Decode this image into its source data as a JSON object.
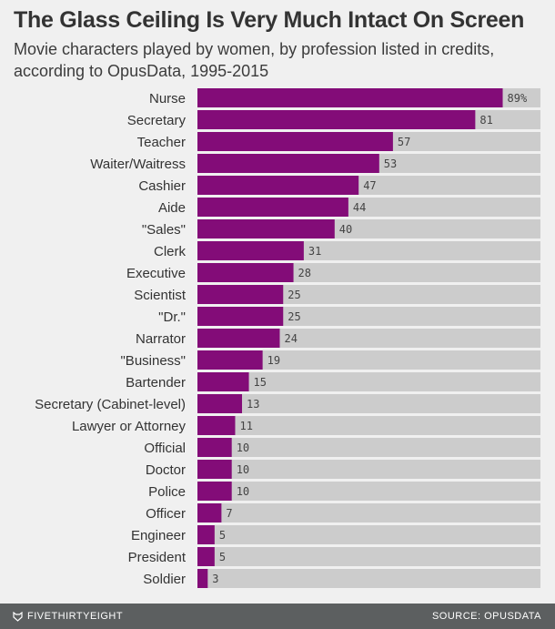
{
  "chart_data": {
    "type": "bar",
    "orientation": "horizontal",
    "title": "The Glass Ceiling Is Very Much Intact On Screen",
    "subtitle": "Movie characters played by women, by profession listed in credits, according to OpusData, 1995-2015",
    "categories": [
      "Nurse",
      "Secretary",
      "Teacher",
      "Waiter/Waitress",
      "Cashier",
      "Aide",
      "\"Sales\"",
      "Clerk",
      "Executive",
      "Scientist",
      "\"Dr.\"",
      "Narrator",
      "\"Business\"",
      "Bartender",
      "Secretary (Cabinet-level)",
      "Lawyer or Attorney",
      "Official",
      "Doctor",
      "Police",
      "Officer",
      "Engineer",
      "President",
      "Soldier"
    ],
    "values": [
      89,
      81,
      57,
      53,
      47,
      44,
      40,
      31,
      28,
      25,
      25,
      24,
      19,
      15,
      13,
      11,
      10,
      10,
      10,
      7,
      5,
      5,
      3
    ],
    "value_labels": [
      "89%",
      "81",
      "57",
      "53",
      "47",
      "44",
      "40",
      "31",
      "28",
      "25",
      "25",
      "24",
      "19",
      "15",
      "13",
      "11",
      "10",
      "10",
      "10",
      "7",
      "5",
      "5",
      "3"
    ],
    "xlim": [
      0,
      100
    ],
    "grid": false,
    "colors": {
      "bar": "#830c78",
      "track": "#cccccc",
      "background": "#f0f0f0",
      "footer": "#5c5f60"
    }
  },
  "footer": {
    "brand": "FIVETHIRTYEIGHT",
    "brand_icon": "fox-logo-icon",
    "source": "SOURCE: OPUSDATA"
  }
}
